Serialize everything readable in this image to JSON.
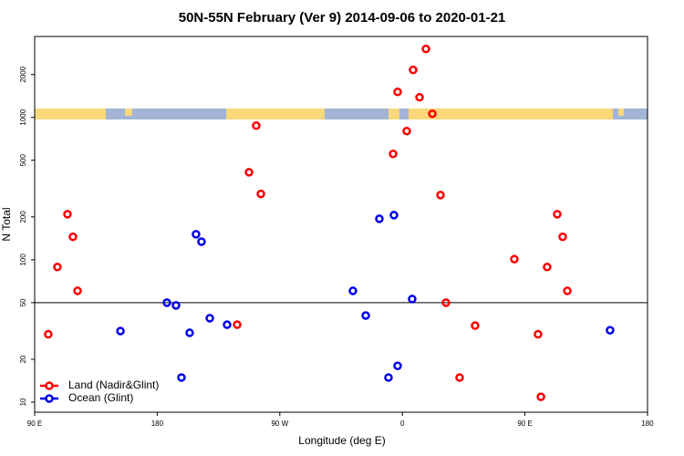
{
  "chart_data": {
    "type": "scatter",
    "title": "50N-55N February (Ver 9)   2014-09-06 to 2020-01-21",
    "x_label": "Longitude (deg E)",
    "y_label": "N Total",
    "xlim": [
      90,
      540
    ],
    "ylim": [
      8.5,
      3700
    ],
    "log_y": true,
    "xticks": [
      {
        "value": 90,
        "label": "90 E"
      },
      180,
      {
        "value": 270,
        "label": "90 W"
      },
      {
        "value": 360,
        "label": "0"
      },
      {
        "value": 450,
        "label": "90 E"
      },
      {
        "value": 540,
        "label": "180"
      }
    ],
    "yticks": [
      10,
      20,
      50,
      100,
      200,
      500,
      1000,
      2000
    ],
    "hline": 50,
    "legend": "bottom-left",
    "series": [
      {
        "name": "Land (Nadir&Glint)",
        "color": "#ff0000",
        "x": [
          100,
          106.7,
          114.1,
          118.1,
          121.5,
          238.7,
          247.4,
          252.7,
          256.1,
          353.2,
          356.5,
          363.2,
          367.9,
          372.6,
          377.3,
          382,
          388,
          392,
          402,
          413.4,
          442.2,
          459.6,
          461.7,
          466.3,
          473.7,
          477.7,
          481.1
        ],
        "values": [
          30,
          89,
          209,
          145,
          60.5,
          35,
          412,
          875,
          290,
          554,
          1510,
          801,
          2155,
          1384,
          3025,
          1061,
          285,
          50,
          14.9,
          34.5,
          101,
          30,
          10.9,
          89,
          209,
          145,
          60.5
        ]
      },
      {
        "name": "Ocean (Glint)",
        "color": "#0000ee",
        "x": [
          153,
          187.1,
          193.8,
          197.8,
          203.8,
          208.5,
          212.5,
          218.6,
          231.3,
          323.7,
          333.1,
          343.1,
          349.8,
          353.8,
          356.5,
          367.2,
          512.5
        ],
        "values": [
          31.6,
          50,
          47.8,
          14.9,
          30.7,
          151,
          134,
          38.9,
          35,
          60.5,
          40.6,
          194,
          14.9,
          206,
          18,
          53,
          32
        ]
      }
    ]
  }
}
